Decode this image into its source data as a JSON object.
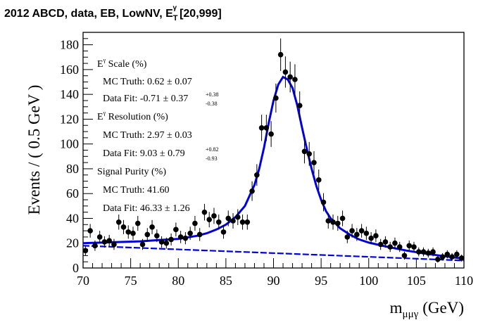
{
  "chart_data": {
    "type": "scatter",
    "title": "2012 ABCD, data, EB, LowNV, E",
    "title_super": "γ",
    "title_sub": "T",
    "title_range": "[20,999]",
    "xlabel": "m",
    "xlabel_sub": "μμγ",
    "xlabel_unit": "(GeV)",
    "ylabel": "Events / ( 0.5 GeV )",
    "xlim": [
      70,
      110
    ],
    "ylim": [
      0,
      190
    ],
    "xticks": [
      "70",
      "75",
      "80",
      "85",
      "90",
      "95",
      "100",
      "105",
      "110"
    ],
    "yticks": [
      "0",
      "20",
      "40",
      "60",
      "80",
      "100",
      "120",
      "140",
      "160",
      "180"
    ],
    "colors": {
      "data": "#000000",
      "fit": "#0000dd",
      "background": "#0000dd"
    },
    "series": [
      {
        "kind": "data-points",
        "x": [
          70.25,
          70.75,
          71.25,
          71.75,
          72.25,
          72.75,
          73.25,
          73.75,
          74.25,
          74.75,
          75.25,
          75.75,
          76.25,
          76.75,
          77.25,
          77.75,
          78.25,
          78.75,
          79.25,
          79.75,
          80.25,
          80.75,
          81.25,
          81.75,
          82.25,
          82.75,
          83.25,
          83.75,
          84.25,
          84.75,
          85.25,
          85.75,
          86.25,
          86.75,
          87.25,
          87.75,
          88.25,
          88.75,
          89.25,
          89.75,
          90.25,
          90.75,
          91.25,
          91.75,
          92.25,
          92.75,
          93.25,
          93.75,
          94.25,
          94.75,
          95.25,
          95.75,
          96.25,
          96.75,
          97.25,
          97.75,
          98.25,
          98.75,
          99.25,
          99.75,
          100.25,
          100.75,
          101.25,
          101.75,
          102.25,
          102.75,
          103.25,
          103.75,
          104.25,
          104.75,
          105.25,
          105.75,
          106.25,
          106.75,
          107.25,
          107.75,
          108.25,
          108.75,
          109.25,
          109.75
        ],
        "y": [
          14,
          30,
          18,
          25,
          21,
          22,
          19,
          37,
          33,
          29,
          28,
          36,
          19,
          27,
          33,
          26,
          21,
          20,
          23,
          31,
          25,
          24,
          28,
          36,
          27,
          45,
          39,
          42,
          37,
          29,
          40,
          38,
          41,
          37,
          37,
          62,
          75,
          113,
          113,
          108,
          137,
          172,
          158,
          154,
          152,
          131,
          94,
          92,
          85,
          71,
          53,
          38,
          37,
          36,
          40,
          25,
          30,
          27,
          30,
          28,
          24,
          26,
          19,
          21,
          17,
          20,
          17,
          10,
          18,
          17,
          13,
          13,
          12,
          13,
          7,
          9,
          11,
          9,
          11,
          8
        ],
        "yerr": [
          4,
          5.5,
          4.2,
          5,
          4.6,
          4.7,
          4.4,
          6.1,
          5.7,
          5.4,
          5.3,
          6,
          4.4,
          5.2,
          5.7,
          5.1,
          4.6,
          4.5,
          4.8,
          5.6,
          5,
          4.9,
          5.3,
          6,
          5.2,
          6.7,
          6.2,
          6.5,
          6.1,
          5.4,
          6.3,
          6.2,
          6.4,
          6.1,
          6.1,
          7.9,
          8.7,
          10.6,
          10.6,
          10.4,
          11.7,
          13.1,
          12.6,
          12.4,
          12.3,
          11.4,
          9.7,
          9.6,
          9.2,
          8.4,
          7.3,
          6.2,
          6.1,
          6,
          6.3,
          5,
          5.5,
          5.2,
          5.5,
          5.3,
          4.9,
          5.1,
          4.4,
          4.6,
          4.1,
          4.5,
          4.1,
          3.2,
          4.2,
          4.1,
          3.6,
          3.6,
          3.5,
          3.6,
          2.6,
          3,
          3.3,
          3,
          3.3,
          2.8
        ]
      },
      {
        "kind": "fit-total",
        "x": [
          70,
          72,
          74,
          76,
          78,
          80,
          82,
          83,
          84,
          85,
          86,
          87,
          88,
          88.5,
          89,
          89.5,
          90,
          90.5,
          91,
          91.5,
          92,
          92.5,
          93,
          93.5,
          94,
          94.5,
          95,
          95.5,
          96,
          97,
          98,
          99,
          100,
          102,
          104,
          106,
          108,
          110
        ],
        "y": [
          20,
          20.5,
          21,
          21.5,
          22.5,
          23.5,
          26,
          28,
          31,
          35,
          41,
          50,
          67,
          80,
          97,
          117,
          135,
          148,
          154,
          152,
          145,
          131,
          113,
          96,
          80,
          66,
          55,
          46,
          40,
          32,
          27,
          23,
          20.5,
          17,
          14,
          11.5,
          9.5,
          7.5
        ]
      },
      {
        "kind": "fit-background",
        "x": [
          70,
          110
        ],
        "y": [
          18,
          6
        ]
      }
    ],
    "annotations": {
      "scale_title": "E",
      "scale_super": "γ",
      "scale_rest": " Scale (%)",
      "scale_mc": "MC Truth: 0.62 ± 0.07",
      "scale_fit": "Data Fit: -0.71 ± 0.37",
      "scale_fit_up": "+0.38",
      "scale_fit_down": "-0.38",
      "res_title": "E",
      "res_super": "γ",
      "res_rest": " Resolution (%)",
      "res_mc": "MC Truth: 2.97 ± 0.03",
      "res_fit": "Data Fit: 9.03 ± 0.79",
      "res_fit_up": "+0.82",
      "res_fit_down": "-0.93",
      "pur_title": "Signal Purity (%)",
      "pur_mc": "MC Truth: 41.60",
      "pur_fit": "Data Fit: 46.33 ± 1.26"
    }
  }
}
